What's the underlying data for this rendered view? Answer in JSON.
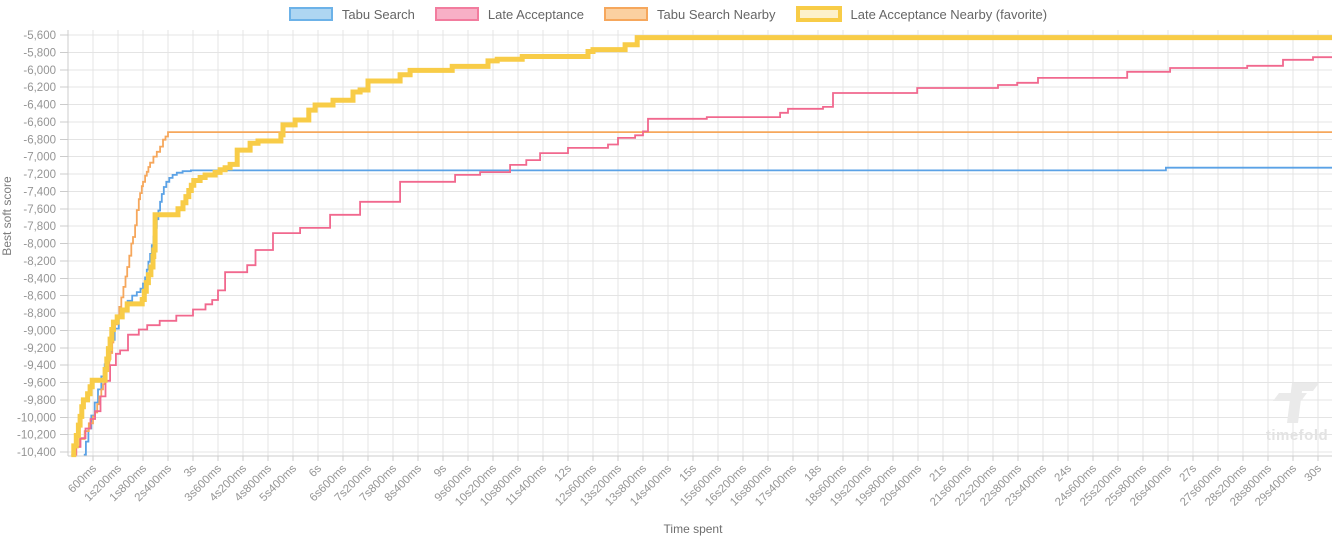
{
  "legend": {
    "items": [
      {
        "label": "Tabu Search",
        "stroke": "#6cb2e8",
        "fill": "#aed6f2",
        "favorite": false
      },
      {
        "label": "Late Acceptance",
        "stroke": "#f27c9e",
        "fill": "#f8b0c6",
        "favorite": false
      },
      {
        "label": "Tabu Search Nearby",
        "stroke": "#f6a75c",
        "fill": "#fbd0a0",
        "favorite": false
      },
      {
        "label": "Late Acceptance Nearby (favorite)",
        "stroke": "#f8cc47",
        "fill": "#fdf1cb",
        "favorite": true
      }
    ]
  },
  "axes": {
    "y_title": "Best soft score",
    "x_title": "Time spent",
    "y_ticks": [
      "-5,600",
      "-5,800",
      "-6,000",
      "-6,200",
      "-6,400",
      "-6,600",
      "-6,800",
      "-7,000",
      "-7,200",
      "-7,400",
      "-7,600",
      "-7,800",
      "-8,000",
      "-8,200",
      "-8,400",
      "-8,600",
      "-8,800",
      "-9,000",
      "-9,200",
      "-9,400",
      "-9,600",
      "-9,800",
      "-10,000",
      "-10,200",
      "-10,400"
    ],
    "x_ticks": [
      "600ms",
      "1s200ms",
      "1s800ms",
      "2s400ms",
      "3s",
      "3s600ms",
      "4s200ms",
      "4s800ms",
      "5s400ms",
      "6s",
      "6s600ms",
      "7s200ms",
      "7s800ms",
      "8s400ms",
      "9s",
      "9s600ms",
      "10s200ms",
      "10s800ms",
      "11s400ms",
      "12s",
      "12s600ms",
      "13s200ms",
      "13s800ms",
      "14s400ms",
      "15s",
      "15s600ms",
      "16s200ms",
      "16s800ms",
      "17s400ms",
      "18s",
      "18s600ms",
      "19s200ms",
      "19s800ms",
      "20s400ms",
      "21s",
      "21s600ms",
      "22s200ms",
      "22s800ms",
      "23s400ms",
      "24s",
      "24s600ms",
      "25s200ms",
      "25s800ms",
      "26s400ms",
      "27s",
      "27s600ms",
      "28s200ms",
      "28s800ms",
      "29s400ms",
      "30s"
    ]
  },
  "watermark": {
    "text": "timefold"
  },
  "colors": {
    "grid": "#e4e4e4",
    "axis": "#cccccc",
    "tick_text": "#959595",
    "axis_title_text": "#7d7d7d",
    "legend_text": "#666666",
    "watermark": "#eaeaea",
    "background": "#ffffff"
  },
  "chart_data": {
    "type": "line",
    "step": true,
    "title": "",
    "xlabel": "Time spent",
    "ylabel": "Best soft score",
    "x_unit_ms": true,
    "xlim": [
      0,
      30000
    ],
    "ylim": [
      -10400,
      -5600
    ],
    "y_tick_interval": 200,
    "x_tick_interval_ms": 600,
    "grid": true,
    "legend_position": "top",
    "series": [
      {
        "name": "Tabu Search",
        "color": "#5ba2e6",
        "line_width": 1.8,
        "points": [
          [
            380,
            -10430
          ],
          [
            430,
            -10280
          ],
          [
            490,
            -10130
          ],
          [
            560,
            -9980
          ],
          [
            640,
            -9830
          ],
          [
            720,
            -9680
          ],
          [
            800,
            -9530
          ],
          [
            880,
            -9390
          ],
          [
            960,
            -9250
          ],
          [
            1040,
            -9110
          ],
          [
            1120,
            -8980
          ],
          [
            1220,
            -8850
          ],
          [
            1320,
            -8750
          ],
          [
            1430,
            -8660
          ],
          [
            1540,
            -8600
          ],
          [
            1650,
            -8560
          ],
          [
            1740,
            -8520
          ],
          [
            1800,
            -8460
          ],
          [
            1850,
            -8390
          ],
          [
            1890,
            -8300
          ],
          [
            1930,
            -8210
          ],
          [
            1970,
            -8120
          ],
          [
            2010,
            -8020
          ],
          [
            2050,
            -7920
          ],
          [
            2090,
            -7820
          ],
          [
            2130,
            -7720
          ],
          [
            2170,
            -7620
          ],
          [
            2210,
            -7520
          ],
          [
            2250,
            -7430
          ],
          [
            2300,
            -7350
          ],
          [
            2360,
            -7290
          ],
          [
            2430,
            -7245
          ],
          [
            2510,
            -7210
          ],
          [
            2610,
            -7185
          ],
          [
            2750,
            -7168
          ],
          [
            2950,
            -7158
          ],
          [
            26350,
            -7128
          ],
          [
            30000,
            -7128
          ]
        ]
      },
      {
        "name": "Tabu Search Nearby",
        "color": "#f6a75c",
        "line_width": 1.8,
        "points": [
          [
            80,
            -10430
          ],
          [
            160,
            -10340
          ],
          [
            280,
            -10250
          ],
          [
            400,
            -10160
          ],
          [
            500,
            -10070
          ],
          [
            600,
            -9990
          ],
          [
            650,
            -9945
          ],
          [
            700,
            -9850
          ],
          [
            750,
            -9760
          ],
          [
            800,
            -9680
          ],
          [
            840,
            -9620
          ],
          [
            880,
            -9540
          ],
          [
            920,
            -9470
          ],
          [
            950,
            -9406
          ],
          [
            990,
            -9330
          ],
          [
            1020,
            -9260
          ],
          [
            1060,
            -9140
          ],
          [
            1090,
            -8990
          ],
          [
            1130,
            -8930
          ],
          [
            1180,
            -8840
          ],
          [
            1230,
            -8730
          ],
          [
            1280,
            -8620
          ],
          [
            1330,
            -8500
          ],
          [
            1380,
            -8380
          ],
          [
            1420,
            -8270
          ],
          [
            1470,
            -8140
          ],
          [
            1520,
            -8000
          ],
          [
            1560,
            -7925
          ],
          [
            1610,
            -7790
          ],
          [
            1650,
            -7615
          ],
          [
            1700,
            -7490
          ],
          [
            1730,
            -7420
          ],
          [
            1770,
            -7340
          ],
          [
            1800,
            -7290
          ],
          [
            1850,
            -7220
          ],
          [
            1890,
            -7175
          ],
          [
            1930,
            -7120
          ],
          [
            1970,
            -7070
          ],
          [
            2050,
            -7000
          ],
          [
            2130,
            -6945
          ],
          [
            2210,
            -6885
          ],
          [
            2280,
            -6805
          ],
          [
            2340,
            -6768
          ],
          [
            2400,
            -6718
          ],
          [
            30000,
            -6718
          ]
        ]
      },
      {
        "name": "Late Acceptance",
        "color": "#f1688e",
        "line_width": 1.8,
        "points": [
          [
            100,
            -10430
          ],
          [
            200,
            -10340
          ],
          [
            300,
            -10240
          ],
          [
            420,
            -10130
          ],
          [
            540,
            -10020
          ],
          [
            650,
            -9930
          ],
          [
            780,
            -9760
          ],
          [
            900,
            -9580
          ],
          [
            1010,
            -9400
          ],
          [
            1150,
            -9270
          ],
          [
            1250,
            -9230
          ],
          [
            1440,
            -9050
          ],
          [
            1700,
            -8990
          ],
          [
            1900,
            -8940
          ],
          [
            2200,
            -8890
          ],
          [
            2600,
            -8830
          ],
          [
            3000,
            -8760
          ],
          [
            3300,
            -8700
          ],
          [
            3460,
            -8650
          ],
          [
            3600,
            -8540
          ],
          [
            3770,
            -8330
          ],
          [
            4300,
            -8250
          ],
          [
            4500,
            -8075
          ],
          [
            4920,
            -7880
          ],
          [
            5570,
            -7820
          ],
          [
            6290,
            -7670
          ],
          [
            7010,
            -7520
          ],
          [
            7970,
            -7290
          ],
          [
            9290,
            -7210
          ],
          [
            9890,
            -7178
          ],
          [
            10610,
            -7095
          ],
          [
            11000,
            -7040
          ],
          [
            11330,
            -6960
          ],
          [
            12000,
            -6900
          ],
          [
            12960,
            -6860
          ],
          [
            13200,
            -6785
          ],
          [
            13610,
            -6754
          ],
          [
            13800,
            -6710
          ],
          [
            13920,
            -6565
          ],
          [
            15330,
            -6545
          ],
          [
            17090,
            -6495
          ],
          [
            17280,
            -6450
          ],
          [
            18120,
            -6428
          ],
          [
            18360,
            -6268
          ],
          [
            20380,
            -6210
          ],
          [
            22320,
            -6175
          ],
          [
            22780,
            -6150
          ],
          [
            23280,
            -6094
          ],
          [
            25420,
            -6024
          ],
          [
            26450,
            -5980
          ],
          [
            28300,
            -5955
          ],
          [
            29160,
            -5885
          ],
          [
            29880,
            -5855
          ],
          [
            30000,
            -5855
          ]
        ]
      },
      {
        "name": "Late Acceptance Nearby (favorite)",
        "color": "#f8cc47",
        "line_width": 5,
        "points": [
          [
            80,
            -10430
          ],
          [
            140,
            -10330
          ],
          [
            200,
            -10210
          ],
          [
            250,
            -10090
          ],
          [
            290,
            -9990
          ],
          [
            330,
            -9880
          ],
          [
            370,
            -9800
          ],
          [
            470,
            -9730
          ],
          [
            530,
            -9650
          ],
          [
            580,
            -9575
          ],
          [
            890,
            -9450
          ],
          [
            930,
            -9330
          ],
          [
            970,
            -9210
          ],
          [
            1010,
            -9100
          ],
          [
            1050,
            -8990
          ],
          [
            1090,
            -8905
          ],
          [
            1180,
            -8845
          ],
          [
            1300,
            -8765
          ],
          [
            1420,
            -8695
          ],
          [
            1780,
            -8645
          ],
          [
            1830,
            -8550
          ],
          [
            1880,
            -8450
          ],
          [
            1930,
            -8360
          ],
          [
            1990,
            -8270
          ],
          [
            2040,
            -8150
          ],
          [
            2060,
            -8075
          ],
          [
            2090,
            -7670
          ],
          [
            2640,
            -7600
          ],
          [
            2760,
            -7530
          ],
          [
            2830,
            -7460
          ],
          [
            2900,
            -7390
          ],
          [
            2960,
            -7330
          ],
          [
            3020,
            -7275
          ],
          [
            3170,
            -7240
          ],
          [
            3290,
            -7212
          ],
          [
            3530,
            -7182
          ],
          [
            3650,
            -7152
          ],
          [
            3770,
            -7128
          ],
          [
            3890,
            -7090
          ],
          [
            4060,
            -6925
          ],
          [
            4370,
            -6845
          ],
          [
            4560,
            -6820
          ],
          [
            5110,
            -6750
          ],
          [
            5160,
            -6635
          ],
          [
            5450,
            -6578
          ],
          [
            5780,
            -6464
          ],
          [
            5930,
            -6406
          ],
          [
            6360,
            -6352
          ],
          [
            6840,
            -6256
          ],
          [
            7010,
            -6233
          ],
          [
            7200,
            -6130
          ],
          [
            7970,
            -6058
          ],
          [
            8210,
            -6008
          ],
          [
            9220,
            -5962
          ],
          [
            10080,
            -5898
          ],
          [
            10300,
            -5878
          ],
          [
            10900,
            -5848
          ],
          [
            12480,
            -5790
          ],
          [
            12600,
            -5768
          ],
          [
            13370,
            -5712
          ],
          [
            13660,
            -5630
          ],
          [
            30000,
            -5630
          ]
        ]
      }
    ]
  }
}
